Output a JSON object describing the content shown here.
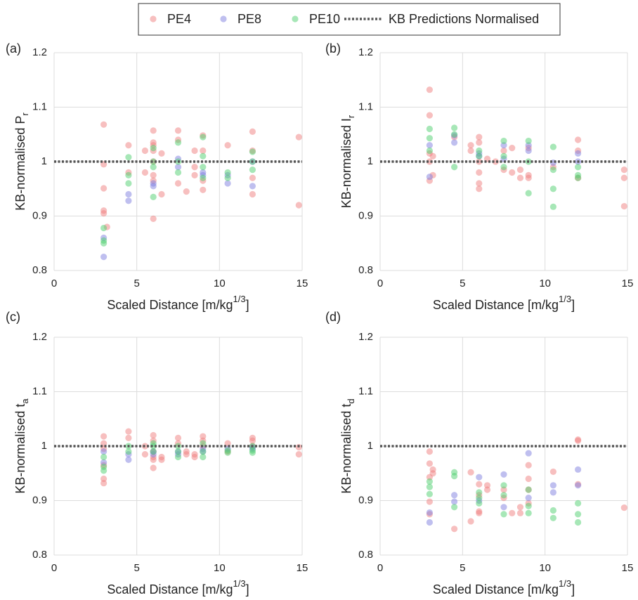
{
  "chart_data": [
    {
      "type": "scatter",
      "panel_label": "(a)",
      "xlabel": [
        "Scaled Distance [m/kg",
        "1/3",
        "]"
      ],
      "ylabel": [
        "KB-normalised P",
        "r"
      ],
      "xlim": [
        0,
        15
      ],
      "ylim": [
        0.8,
        1.2
      ],
      "xticks": [
        0,
        5,
        10,
        15
      ],
      "yticks": [
        0.8,
        0.9,
        1,
        1.1,
        1.2
      ],
      "grid": true,
      "reference": {
        "name": "KB Predictions Normalised",
        "value": 1,
        "color": "#555555"
      },
      "series": [
        {
          "name": "PE4",
          "color": "#f08080",
          "x": [
            3,
            3,
            3,
            3,
            3,
            3.2,
            4.5,
            4.5,
            5.5,
            5.5,
            6,
            6,
            6,
            6,
            6,
            6,
            6,
            6,
            6.5,
            6.5,
            7.5,
            7.5,
            7.5,
            8,
            8.5,
            8.5,
            8.5,
            9,
            9,
            9,
            9,
            10.5,
            12,
            12,
            12,
            12,
            14.8,
            14.8
          ],
          "values": [
            1.068,
            0.995,
            0.951,
            0.91,
            0.905,
            0.88,
            1.03,
            0.98,
            1.02,
            0.98,
            1.057,
            1.035,
            1.03,
            1.02,
            1.0,
            0.975,
            0.965,
            0.895,
            1.015,
            0.94,
            1.057,
            1.04,
            0.96,
            0.945,
            1.02,
            0.99,
            0.975,
            1.048,
            1.02,
            0.965,
            0.948,
            1.03,
            1.055,
            1.02,
            0.97,
            0.94,
            1.045,
            0.92
          ]
        },
        {
          "name": "PE8",
          "color": "#8080e0",
          "x": [
            3,
            3,
            4.5,
            4.5,
            6,
            6,
            7.5,
            7.5,
            9,
            9,
            10.5,
            10.5,
            12,
            12
          ],
          "values": [
            0.86,
            0.825,
            0.94,
            0.928,
            0.96,
            0.955,
            1.005,
            0.99,
            0.98,
            0.975,
            0.96,
            0.975,
            1.0,
            0.955
          ]
        },
        {
          "name": "PE10",
          "color": "#50d070",
          "x": [
            3,
            3,
            3,
            4.5,
            4.5,
            4.5,
            6,
            6,
            6,
            6,
            7.5,
            7.5,
            7.5,
            9,
            9,
            9,
            9,
            10.5,
            10.5,
            12,
            12,
            12
          ],
          "values": [
            0.878,
            0.855,
            0.85,
            1.008,
            0.975,
            0.96,
            1.0,
            0.99,
            0.935,
            1.025,
            1.035,
            1.0,
            0.98,
            1.045,
            1.01,
            0.99,
            0.97,
            0.98,
            0.97,
            1.018,
            1.0,
            0.985
          ]
        }
      ]
    },
    {
      "type": "scatter",
      "panel_label": "(b)",
      "xlabel": [
        "Scaled Distance [m/kg",
        "1/3",
        "]"
      ],
      "ylabel": [
        "KB-normalised I",
        "r"
      ],
      "xlim": [
        0,
        15
      ],
      "ylim": [
        0.8,
        1.2
      ],
      "xticks": [
        0,
        5,
        10,
        15
      ],
      "yticks": [
        0.8,
        0.9,
        1,
        1.1,
        1.2
      ],
      "grid": true,
      "reference": {
        "value": 1,
        "color": "#555555"
      },
      "series": [
        {
          "color": "#f08080",
          "x": [
            3,
            3,
            3,
            3,
            3,
            3.2,
            3.2,
            4.5,
            5.5,
            5.5,
            6,
            6,
            6,
            6,
            6,
            6,
            6.5,
            7,
            7.5,
            7.5,
            8,
            8,
            8.5,
            8.5,
            9,
            9,
            9,
            10.5,
            12,
            12,
            12,
            14.8,
            14.8,
            14.8
          ],
          "values": [
            1.132,
            1.085,
            1.015,
            1.0,
            0.965,
            1.01,
            0.975,
            1.045,
            1.03,
            1.02,
            1.045,
            1.035,
            1.0,
            0.98,
            0.96,
            0.95,
            1.005,
            1.0,
            1.02,
            0.985,
            1.025,
            0.98,
            0.985,
            0.97,
            1.025,
            0.975,
            0.97,
            0.99,
            1.04,
            1.02,
            0.97,
            0.985,
            0.97,
            0.918
          ]
        },
        {
          "color": "#8080e0",
          "x": [
            3,
            3,
            4.5,
            4.5,
            6,
            6,
            7.5,
            7.5,
            9,
            9,
            10.5,
            12,
            12
          ],
          "values": [
            1.03,
            0.972,
            1.048,
            1.035,
            1.015,
            1.01,
            1.03,
            1.005,
            1.03,
            1.02,
            0.998,
            1.015,
            1.0
          ]
        },
        {
          "color": "#50d070",
          "x": [
            3,
            3,
            3,
            4.5,
            4.5,
            4.5,
            6,
            6,
            7.5,
            7.5,
            7.5,
            9,
            9,
            9,
            10.5,
            10.5,
            10.5,
            10.5,
            12,
            12,
            12
          ],
          "values": [
            1.06,
            1.043,
            1.02,
            1.062,
            1.05,
            0.99,
            1.02,
            1.01,
            1.038,
            1.01,
            0.99,
            1.038,
            1.0,
            0.942,
            1.027,
            0.985,
            0.95,
            0.917,
            0.99,
            0.975,
            0.97
          ]
        }
      ]
    },
    {
      "type": "scatter",
      "panel_label": "(c)",
      "xlabel": [
        "Scaled Distance [m/kg",
        "1/3",
        "]"
      ],
      "ylabel": [
        "KB-normalised t",
        "a"
      ],
      "xlim": [
        0,
        15
      ],
      "ylim": [
        0.8,
        1.2
      ],
      "xticks": [
        0,
        5,
        10,
        15
      ],
      "yticks": [
        0.8,
        0.9,
        1,
        1.1,
        1.2
      ],
      "grid": true,
      "reference": {
        "value": 1,
        "color": "#555555"
      },
      "series": [
        {
          "color": "#f08080",
          "x": [
            3,
            3,
            3,
            3,
            3,
            3,
            4.5,
            4.5,
            5.5,
            5.5,
            6,
            6,
            6,
            6,
            6,
            6,
            6.5,
            6.5,
            7.5,
            7.5,
            8,
            8,
            8.5,
            8.5,
            9,
            9,
            9,
            10.5,
            10.5,
            12,
            12,
            12,
            14.8,
            14.8
          ],
          "values": [
            1.018,
            1.005,
            0.995,
            0.965,
            0.94,
            0.932,
            1.027,
            1.015,
            1.0,
            0.985,
            1.02,
            1.01,
            0.99,
            0.98,
            0.975,
            0.96,
            0.98,
            0.975,
            1.015,
            1.005,
            0.99,
            0.985,
            0.985,
            0.98,
            1.018,
            1.01,
            1.0,
            1.005,
            0.99,
            1.015,
            1.01,
            1.0,
            0.998,
            0.985
          ]
        },
        {
          "color": "#8080e0",
          "x": [
            3,
            3,
            4.5,
            4.5,
            6,
            6,
            7.5,
            7.5,
            9,
            9,
            10.5,
            12,
            12
          ],
          "values": [
            0.99,
            0.97,
            0.985,
            0.975,
            0.99,
            0.985,
            0.99,
            0.985,
            0.995,
            0.99,
            0.995,
            0.998,
            0.995
          ]
        },
        {
          "color": "#50d070",
          "x": [
            3,
            3,
            3,
            4.5,
            4.5,
            6,
            6,
            6,
            7.5,
            7.5,
            7.5,
            9,
            9,
            9,
            10.5,
            10.5,
            12,
            12,
            12
          ],
          "values": [
            0.98,
            0.962,
            0.955,
            1.0,
            0.99,
            1.005,
            1.0,
            0.99,
            1.0,
            0.99,
            0.98,
            1.005,
            0.99,
            0.98,
            0.992,
            0.988,
            1.0,
            0.992,
            0.988
          ]
        }
      ]
    },
    {
      "type": "scatter",
      "panel_label": "(d)",
      "xlabel": [
        "Scaled Distance [m/kg",
        "1/3",
        "]"
      ],
      "ylabel": [
        "KB-normalised t",
        "d"
      ],
      "xlim": [
        0,
        15
      ],
      "ylim": [
        0.8,
        1.2
      ],
      "xticks": [
        0,
        5,
        10,
        15
      ],
      "yticks": [
        0.8,
        0.9,
        1,
        1.1,
        1.2
      ],
      "grid": true,
      "reference": {
        "value": 1,
        "color": "#555555"
      },
      "series": [
        {
          "color": "#f08080",
          "x": [
            3,
            3,
            3,
            3,
            3,
            3.2,
            3.2,
            4.5,
            5.5,
            5.5,
            6,
            6,
            6,
            6,
            6.5,
            6.5,
            7.5,
            7.5,
            8,
            8.5,
            8.5,
            9,
            9,
            9,
            9,
            10.5,
            12,
            12,
            12,
            14.8
          ],
          "values": [
            0.99,
            0.968,
            0.943,
            0.898,
            0.875,
            0.957,
            0.95,
            0.848,
            0.952,
            0.862,
            0.93,
            0.91,
            0.88,
            0.877,
            0.928,
            0.92,
            0.92,
            0.905,
            0.877,
            0.888,
            0.877,
            0.965,
            0.94,
            0.92,
            0.895,
            0.953,
            1.012,
            1.01,
            0.93,
            0.887
          ]
        },
        {
          "color": "#8080e0",
          "x": [
            3,
            3,
            4.5,
            4.5,
            6,
            6,
            7.5,
            7.5,
            9,
            9,
            10.5,
            10.5,
            12,
            12
          ],
          "values": [
            0.878,
            0.86,
            0.91,
            0.898,
            0.943,
            0.9,
            0.948,
            0.888,
            0.987,
            0.905,
            0.928,
            0.915,
            0.957,
            0.928
          ]
        },
        {
          "color": "#50d070",
          "x": [
            3,
            3,
            3,
            4.5,
            4.5,
            4.5,
            6,
            6,
            6,
            7.5,
            7.5,
            7.5,
            9,
            9,
            9,
            10.5,
            10.5,
            12,
            12,
            12
          ],
          "values": [
            0.935,
            0.925,
            0.912,
            0.952,
            0.945,
            0.888,
            0.915,
            0.905,
            0.895,
            0.928,
            0.91,
            0.875,
            0.92,
            0.89,
            0.877,
            0.882,
            0.868,
            0.895,
            0.875,
            0.86
          ]
        }
      ]
    }
  ]
}
